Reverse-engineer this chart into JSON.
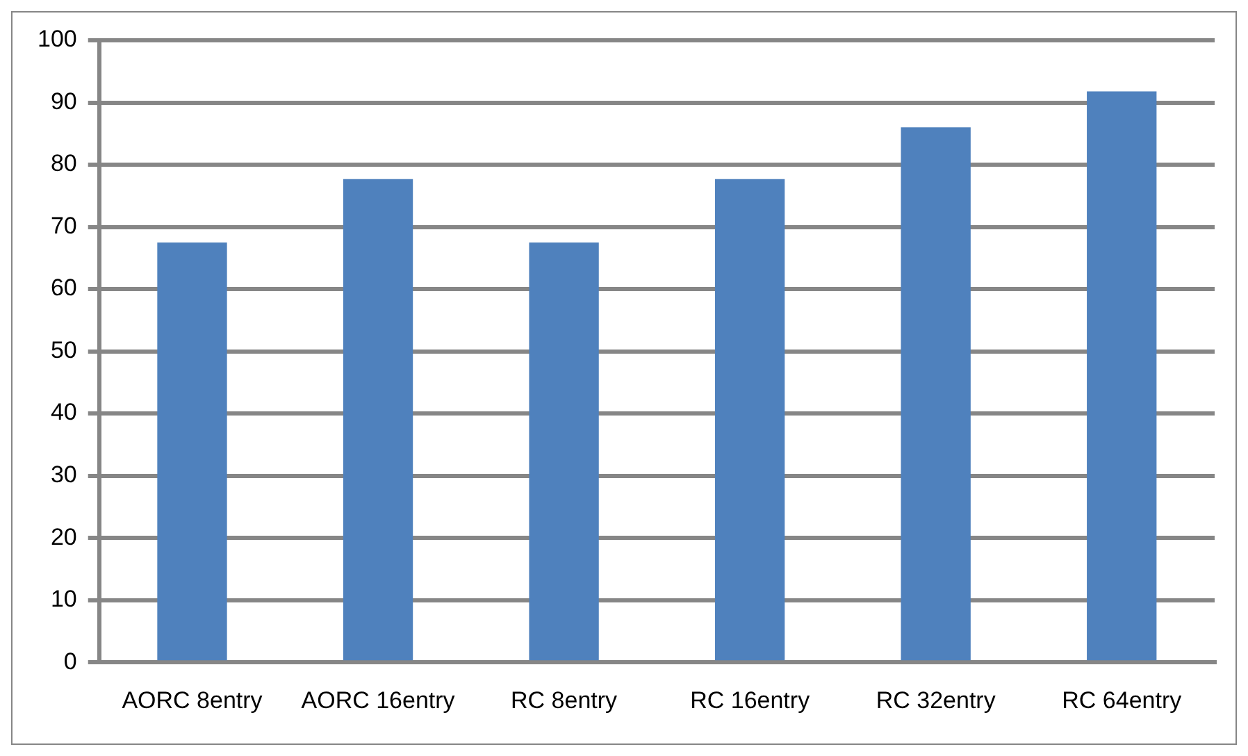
{
  "chart_data": {
    "type": "bar",
    "categories": [
      "AORC 8entry",
      "AORC 16entry",
      "RC 8entry",
      "RC 16entry",
      "RC 32entry",
      "RC 64entry"
    ],
    "values": [
      67.5,
      77.7,
      67.5,
      77.7,
      86,
      91.8
    ],
    "color": "#4f81bd",
    "ylim": [
      0,
      100
    ],
    "yticks": [
      0,
      10,
      20,
      30,
      40,
      50,
      60,
      70,
      80,
      90,
      100
    ],
    "grid": "y",
    "legend": false
  }
}
